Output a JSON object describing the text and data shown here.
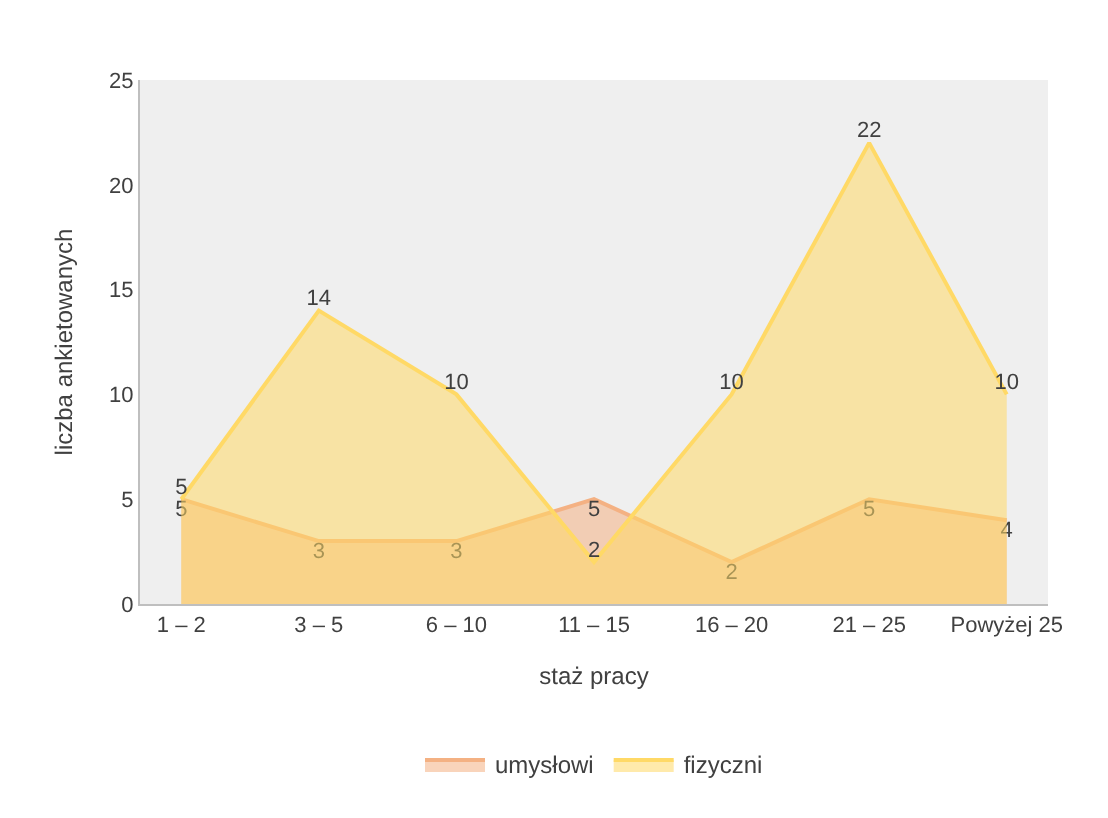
{
  "chart_data": {
    "type": "area",
    "xlabel": "staż pracy",
    "ylabel": "liczba ankietowanych",
    "categories": [
      "1 – 2",
      "3 – 5",
      "6 – 10",
      "11 – 15",
      "16 – 20",
      "21 – 25",
      "Powyżej 25"
    ],
    "series": [
      {
        "name": "umysłowi",
        "color": "#f4b183",
        "values": [
          5,
          3,
          3,
          5,
          2,
          5,
          4
        ]
      },
      {
        "name": "fizyczni",
        "color": "#ffd966",
        "values": [
          5,
          14,
          10,
          2,
          10,
          22,
          10
        ]
      }
    ],
    "ylim": [
      0,
      25
    ],
    "yticks": [
      0,
      5,
      10,
      15,
      20,
      25
    ],
    "grid": false,
    "legend": "bottom",
    "data_labels": true
  }
}
